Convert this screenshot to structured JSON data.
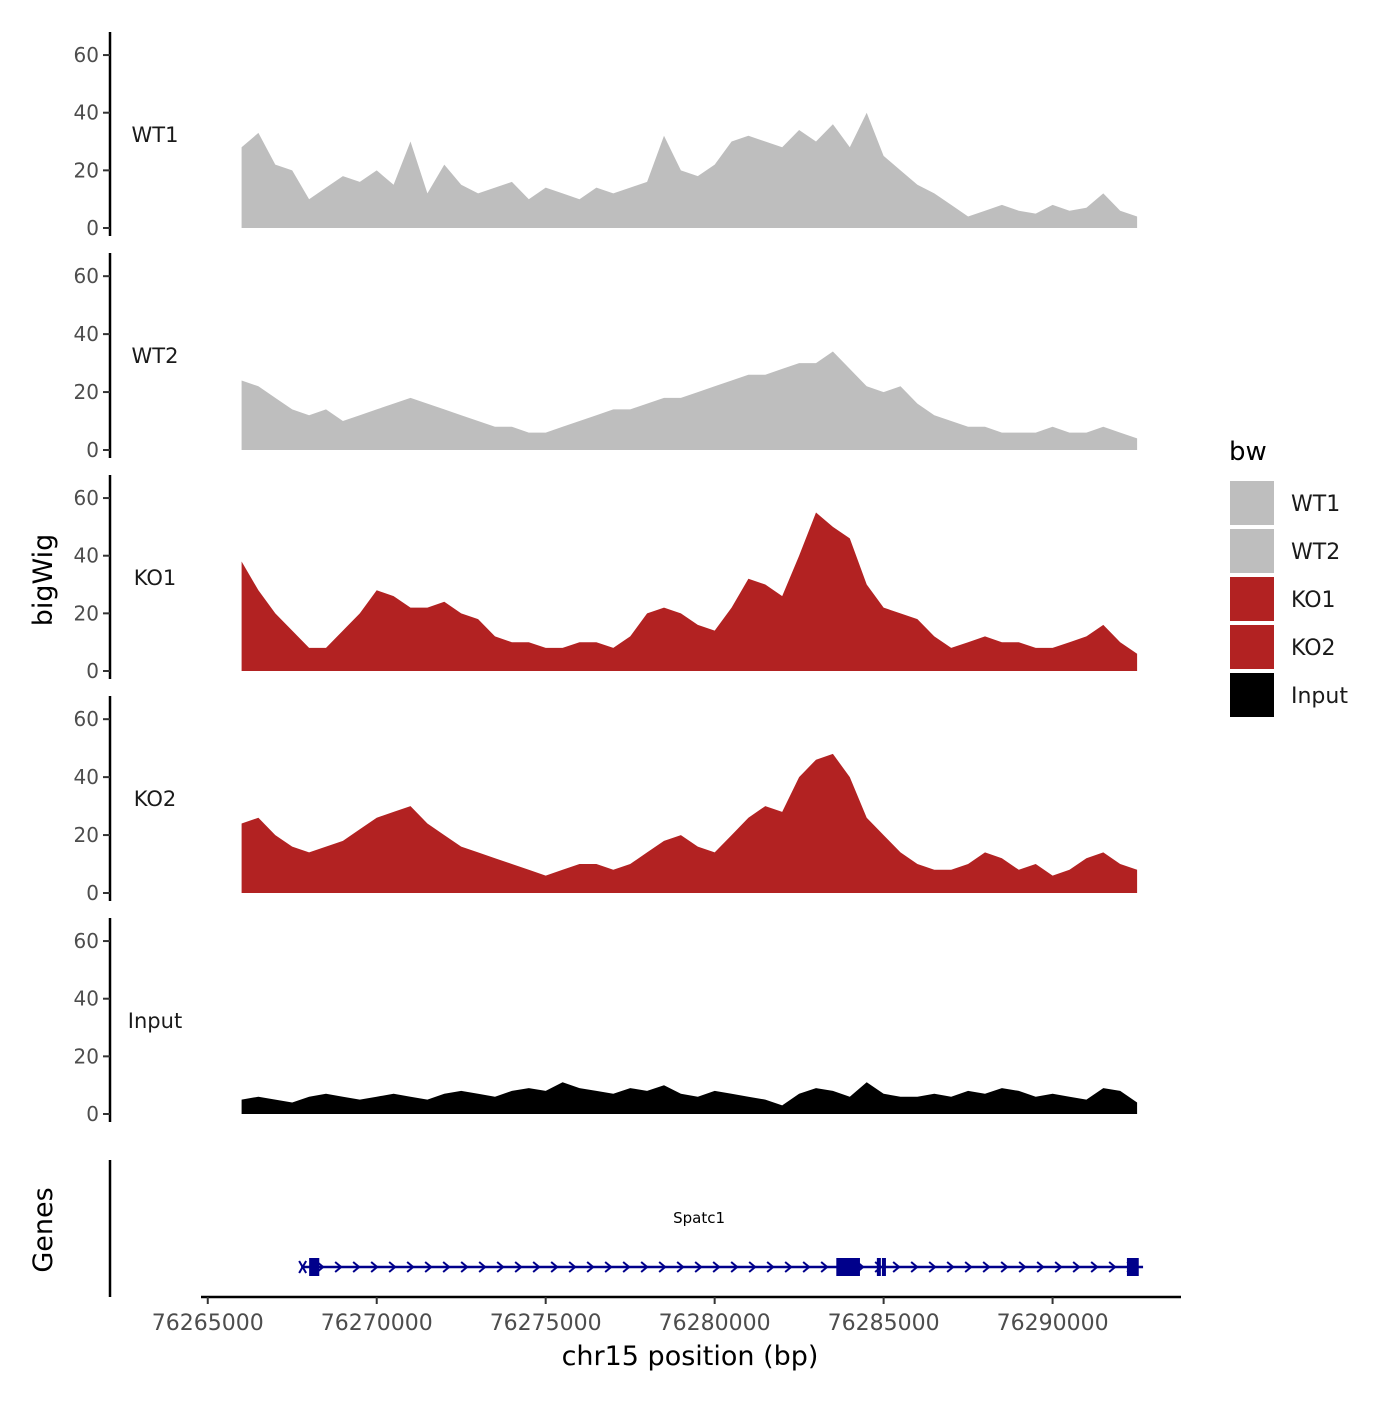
{
  "chart_data": {
    "type": "area",
    "chromosome": "chr15",
    "xlabel": "chr15 position (bp)",
    "ylabel": "bigWig",
    "genes_panel_label": "Genes",
    "xlim": [
      76264800,
      76293800
    ],
    "x_ticks": [
      76265000,
      76270000,
      76275000,
      76280000,
      76285000,
      76290000
    ],
    "x_tick_labels": [
      "76265000",
      "76270000",
      "76275000",
      "76280000",
      "76285000",
      "76290000"
    ],
    "ylim": [
      0,
      68
    ],
    "y_ticks": [
      0,
      20,
      40,
      60
    ],
    "y_tick_labels": [
      "0",
      "20",
      "40",
      "60"
    ],
    "grid": false,
    "legend": {
      "title": "bw",
      "position": "right",
      "entries": [
        {
          "label": "WT1",
          "color": "#bebebe"
        },
        {
          "label": "WT2",
          "color": "#bebebe"
        },
        {
          "label": "KO1",
          "color": "#b22222"
        },
        {
          "label": "KO2",
          "color": "#b22222"
        },
        {
          "label": "Input",
          "color": "#000000"
        }
      ]
    },
    "series": [
      {
        "name": "WT1",
        "color": "#bebebe",
        "x": [
          76266000,
          76266500,
          76267000,
          76267500,
          76268000,
          76268500,
          76269000,
          76269500,
          76270000,
          76270500,
          76271000,
          76271500,
          76272000,
          76272500,
          76273000,
          76273500,
          76274000,
          76274500,
          76275000,
          76275500,
          76276000,
          76276500,
          76277000,
          76277500,
          76278000,
          76278500,
          76279000,
          76279500,
          76280000,
          76280500,
          76281000,
          76281500,
          76282000,
          76282500,
          76283000,
          76283500,
          76284000,
          76284500,
          76285000,
          76285500,
          76286000,
          76286500,
          76287000,
          76287500,
          76288000,
          76288500,
          76289000,
          76289500,
          76290000,
          76290500,
          76291000,
          76291500,
          76292000,
          76292500
        ],
        "values": [
          28,
          33,
          22,
          20,
          10,
          14,
          18,
          16,
          20,
          15,
          30,
          12,
          22,
          15,
          12,
          14,
          16,
          10,
          14,
          12,
          10,
          14,
          12,
          14,
          16,
          32,
          20,
          18,
          22,
          30,
          32,
          30,
          28,
          34,
          30,
          36,
          28,
          40,
          25,
          20,
          15,
          12,
          8,
          4,
          6,
          8,
          6,
          5,
          8,
          6,
          7,
          12,
          6,
          4
        ]
      },
      {
        "name": "WT2",
        "color": "#bebebe",
        "x": [
          76266000,
          76266500,
          76267000,
          76267500,
          76268000,
          76268500,
          76269000,
          76269500,
          76270000,
          76270500,
          76271000,
          76271500,
          76272000,
          76272500,
          76273000,
          76273500,
          76274000,
          76274500,
          76275000,
          76275500,
          76276000,
          76276500,
          76277000,
          76277500,
          76278000,
          76278500,
          76279000,
          76279500,
          76280000,
          76280500,
          76281000,
          76281500,
          76282000,
          76282500,
          76283000,
          76283500,
          76284000,
          76284500,
          76285000,
          76285500,
          76286000,
          76286500,
          76287000,
          76287500,
          76288000,
          76288500,
          76289000,
          76289500,
          76290000,
          76290500,
          76291000,
          76291500,
          76292000,
          76292500
        ],
        "values": [
          24,
          22,
          18,
          14,
          12,
          14,
          10,
          12,
          14,
          16,
          18,
          16,
          14,
          12,
          10,
          8,
          8,
          6,
          6,
          8,
          10,
          12,
          14,
          14,
          16,
          18,
          18,
          20,
          22,
          24,
          26,
          26,
          28,
          30,
          30,
          34,
          28,
          22,
          20,
          22,
          16,
          12,
          10,
          8,
          8,
          6,
          6,
          6,
          8,
          6,
          6,
          8,
          6,
          4
        ]
      },
      {
        "name": "KO1",
        "color": "#b22222",
        "x": [
          76266000,
          76266500,
          76267000,
          76267500,
          76268000,
          76268500,
          76269000,
          76269500,
          76270000,
          76270500,
          76271000,
          76271500,
          76272000,
          76272500,
          76273000,
          76273500,
          76274000,
          76274500,
          76275000,
          76275500,
          76276000,
          76276500,
          76277000,
          76277500,
          76278000,
          76278500,
          76279000,
          76279500,
          76280000,
          76280500,
          76281000,
          76281500,
          76282000,
          76282500,
          76283000,
          76283500,
          76284000,
          76284500,
          76285000,
          76285500,
          76286000,
          76286500,
          76287000,
          76287500,
          76288000,
          76288500,
          76289000,
          76289500,
          76290000,
          76290500,
          76291000,
          76291500,
          76292000,
          76292500
        ],
        "values": [
          38,
          28,
          20,
          14,
          8,
          8,
          14,
          20,
          28,
          26,
          22,
          22,
          24,
          20,
          18,
          12,
          10,
          10,
          8,
          8,
          10,
          10,
          8,
          12,
          20,
          22,
          20,
          16,
          14,
          22,
          32,
          30,
          26,
          40,
          55,
          50,
          46,
          30,
          22,
          20,
          18,
          12,
          8,
          10,
          12,
          10,
          10,
          8,
          8,
          10,
          12,
          16,
          10,
          6
        ]
      },
      {
        "name": "KO2",
        "color": "#b22222",
        "x": [
          76266000,
          76266500,
          76267000,
          76267500,
          76268000,
          76268500,
          76269000,
          76269500,
          76270000,
          76270500,
          76271000,
          76271500,
          76272000,
          76272500,
          76273000,
          76273500,
          76274000,
          76274500,
          76275000,
          76275500,
          76276000,
          76276500,
          76277000,
          76277500,
          76278000,
          76278500,
          76279000,
          76279500,
          76280000,
          76280500,
          76281000,
          76281500,
          76282000,
          76282500,
          76283000,
          76283500,
          76284000,
          76284500,
          76285000,
          76285500,
          76286000,
          76286500,
          76287000,
          76287500,
          76288000,
          76288500,
          76289000,
          76289500,
          76290000,
          76290500,
          76291000,
          76291500,
          76292000,
          76292500
        ],
        "values": [
          24,
          26,
          20,
          16,
          14,
          16,
          18,
          22,
          26,
          28,
          30,
          24,
          20,
          16,
          14,
          12,
          10,
          8,
          6,
          8,
          10,
          10,
          8,
          10,
          14,
          18,
          20,
          16,
          14,
          20,
          26,
          30,
          28,
          40,
          46,
          48,
          40,
          26,
          20,
          14,
          10,
          8,
          8,
          10,
          14,
          12,
          8,
          10,
          6,
          8,
          12,
          14,
          10,
          8
        ]
      },
      {
        "name": "Input",
        "color": "#000000",
        "x": [
          76266000,
          76266500,
          76267000,
          76267500,
          76268000,
          76268500,
          76269000,
          76269500,
          76270000,
          76270500,
          76271000,
          76271500,
          76272000,
          76272500,
          76273000,
          76273500,
          76274000,
          76274500,
          76275000,
          76275500,
          76276000,
          76276500,
          76277000,
          76277500,
          76278000,
          76278500,
          76279000,
          76279500,
          76280000,
          76280500,
          76281000,
          76281500,
          76282000,
          76282500,
          76283000,
          76283500,
          76284000,
          76284500,
          76285000,
          76285500,
          76286000,
          76286500,
          76287000,
          76287500,
          76288000,
          76288500,
          76289000,
          76289500,
          76290000,
          76290500,
          76291000,
          76291500,
          76292000,
          76292500
        ],
        "values": [
          5,
          6,
          5,
          4,
          6,
          7,
          6,
          5,
          6,
          7,
          6,
          5,
          7,
          8,
          7,
          6,
          8,
          9,
          8,
          11,
          9,
          8,
          7,
          9,
          8,
          10,
          7,
          6,
          8,
          7,
          6,
          5,
          3,
          7,
          9,
          8,
          6,
          11,
          7,
          6,
          6,
          7,
          6,
          8,
          7,
          9,
          8,
          6,
          7,
          6,
          5,
          9,
          8,
          4
        ]
      }
    ],
    "gene_track": {
      "gene": "Spatc1",
      "strand": "+",
      "start": 76268000,
      "end": 76292500,
      "exons": [
        [
          76268000,
          76268300
        ],
        [
          76283600,
          76284300
        ],
        [
          76284800,
          76284900
        ],
        [
          76284950,
          76285050
        ],
        [
          76292200,
          76292550
        ]
      ]
    }
  }
}
